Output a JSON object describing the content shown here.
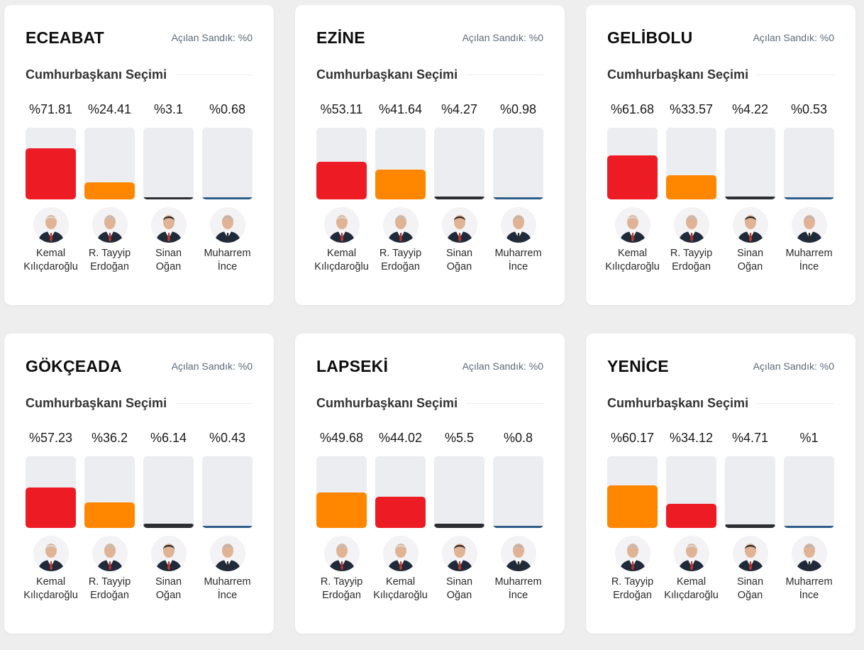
{
  "colors": {
    "Kemal Kılıçdaroğlu": "#ed1c24",
    "R. Tayyip Erdoğan": "#ff8700",
    "Sinan Oğan": "#2b2d30",
    "Muharrem İnce": "#2f5d8a",
    "track": "#ecedf0"
  },
  "chart_data": [
    {
      "type": "bar",
      "title": "ECEABAT",
      "opened": "Açılan Sandık: %0",
      "subtitle": "Cumhurbaşkanı Seçimi",
      "candidates": [
        {
          "line1": "Kemal",
          "line2": "Kılıçdaroğlu",
          "key": "Kemal Kılıçdaroğlu",
          "label": "%71.81",
          "value": 71.81,
          "avatar": "kk"
        },
        {
          "line1": "R. Tayyip",
          "line2": "Erdoğan",
          "key": "R. Tayyip Erdoğan",
          "label": "%24.41",
          "value": 24.41,
          "avatar": "rte"
        },
        {
          "line1": "Sinan",
          "line2": "Oğan",
          "key": "Sinan Oğan",
          "label": "%3.1",
          "value": 3.1,
          "avatar": "so"
        },
        {
          "line1": "Muharrem",
          "line2": "İnce",
          "key": "Muharrem İnce",
          "label": "%0.68",
          "value": 0.68,
          "avatar": "mi"
        }
      ]
    },
    {
      "type": "bar",
      "title": "EZİNE",
      "opened": "Açılan Sandık: %0",
      "subtitle": "Cumhurbaşkanı Seçimi",
      "candidates": [
        {
          "line1": "Kemal",
          "line2": "Kılıçdaroğlu",
          "key": "Kemal Kılıçdaroğlu",
          "label": "%53.11",
          "value": 53.11,
          "avatar": "kk"
        },
        {
          "line1": "R. Tayyip",
          "line2": "Erdoğan",
          "key": "R. Tayyip Erdoğan",
          "label": "%41.64",
          "value": 41.64,
          "avatar": "rte"
        },
        {
          "line1": "Sinan",
          "line2": "Oğan",
          "key": "Sinan Oğan",
          "label": "%4.27",
          "value": 4.27,
          "avatar": "so"
        },
        {
          "line1": "Muharrem",
          "line2": "İnce",
          "key": "Muharrem İnce",
          "label": "%0.98",
          "value": 0.98,
          "avatar": "mi"
        }
      ]
    },
    {
      "type": "bar",
      "title": "GELİBOLU",
      "opened": "Açılan Sandık: %0",
      "subtitle": "Cumhurbaşkanı Seçimi",
      "candidates": [
        {
          "line1": "Kemal",
          "line2": "Kılıçdaroğlu",
          "key": "Kemal Kılıçdaroğlu",
          "label": "%61.68",
          "value": 61.68,
          "avatar": "kk"
        },
        {
          "line1": "R. Tayyip",
          "line2": "Erdoğan",
          "key": "R. Tayyip Erdoğan",
          "label": "%33.57",
          "value": 33.57,
          "avatar": "rte"
        },
        {
          "line1": "Sinan",
          "line2": "Oğan",
          "key": "Sinan Oğan",
          "label": "%4.22",
          "value": 4.22,
          "avatar": "so"
        },
        {
          "line1": "Muharrem",
          "line2": "İnce",
          "key": "Muharrem İnce",
          "label": "%0.53",
          "value": 0.53,
          "avatar": "mi"
        }
      ]
    },
    {
      "type": "bar",
      "title": "GÖKÇEADA",
      "opened": "Açılan Sandık: %0",
      "subtitle": "Cumhurbaşkanı Seçimi",
      "candidates": [
        {
          "line1": "Kemal",
          "line2": "Kılıçdaroğlu",
          "key": "Kemal Kılıçdaroğlu",
          "label": "%57.23",
          "value": 57.23,
          "avatar": "kk"
        },
        {
          "line1": "R. Tayyip",
          "line2": "Erdoğan",
          "key": "R. Tayyip Erdoğan",
          "label": "%36.2",
          "value": 36.2,
          "avatar": "rte"
        },
        {
          "line1": "Sinan",
          "line2": "Oğan",
          "key": "Sinan Oğan",
          "label": "%6.14",
          "value": 6.14,
          "avatar": "so"
        },
        {
          "line1": "Muharrem",
          "line2": "İnce",
          "key": "Muharrem İnce",
          "label": "%0.43",
          "value": 0.43,
          "avatar": "mi"
        }
      ]
    },
    {
      "type": "bar",
      "title": "LAPSEKİ",
      "opened": "Açılan Sandık: %0",
      "subtitle": "Cumhurbaşkanı Seçimi",
      "candidates": [
        {
          "line1": "R. Tayyip",
          "line2": "Erdoğan",
          "key": "R. Tayyip Erdoğan",
          "label": "%49.68",
          "value": 49.68,
          "avatar": "rte"
        },
        {
          "line1": "Kemal",
          "line2": "Kılıçdaroğlu",
          "key": "Kemal Kılıçdaroğlu",
          "label": "%44.02",
          "value": 44.02,
          "avatar": "kk"
        },
        {
          "line1": "Sinan",
          "line2": "Oğan",
          "key": "Sinan Oğan",
          "label": "%5.5",
          "value": 5.5,
          "avatar": "so"
        },
        {
          "line1": "Muharrem",
          "line2": "İnce",
          "key": "Muharrem İnce",
          "label": "%0.8",
          "value": 0.8,
          "avatar": "mi"
        }
      ]
    },
    {
      "type": "bar",
      "title": "YENİCE",
      "opened": "Açılan Sandık: %0",
      "subtitle": "Cumhurbaşkanı Seçimi",
      "candidates": [
        {
          "line1": "R. Tayyip",
          "line2": "Erdoğan",
          "key": "R. Tayyip Erdoğan",
          "label": "%60.17",
          "value": 60.17,
          "avatar": "rte"
        },
        {
          "line1": "Kemal",
          "line2": "Kılıçdaroğlu",
          "key": "Kemal Kılıçdaroğlu",
          "label": "%34.12",
          "value": 34.12,
          "avatar": "kk"
        },
        {
          "line1": "Sinan",
          "line2": "Oğan",
          "key": "Sinan Oğan",
          "label": "%4.71",
          "value": 4.71,
          "avatar": "so"
        },
        {
          "line1": "Muharrem",
          "line2": "İnce",
          "key": "Muharrem İnce",
          "label": "%1",
          "value": 1,
          "avatar": "mi"
        }
      ]
    }
  ]
}
